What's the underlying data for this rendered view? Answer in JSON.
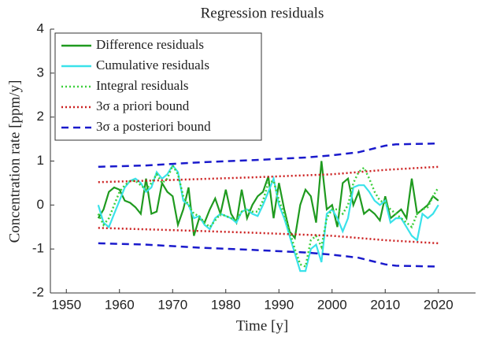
{
  "chart_data": {
    "type": "line",
    "title": "Regression residuals",
    "xlabel": "Time [y]",
    "ylabel": "Concentration rate [ppm/y]",
    "x": [
      1956,
      1957,
      1958,
      1959,
      1960,
      1961,
      1962,
      1963,
      1964,
      1965,
      1966,
      1967,
      1968,
      1969,
      1970,
      1971,
      1972,
      1973,
      1974,
      1975,
      1976,
      1977,
      1978,
      1979,
      1980,
      1981,
      1982,
      1983,
      1984,
      1985,
      1986,
      1987,
      1988,
      1989,
      1990,
      1991,
      1992,
      1993,
      1994,
      1995,
      1996,
      1997,
      1998,
      1999,
      2000,
      2001,
      2002,
      2003,
      2004,
      2005,
      2006,
      2007,
      2008,
      2009,
      2010,
      2011,
      2012,
      2013,
      2014,
      2015,
      2016,
      2017,
      2018,
      2019,
      2020
    ],
    "series": [
      {
        "name": "Difference residuals",
        "color": "#1f9a1f",
        "linestyle": "solid",
        "values": [
          -0.3,
          -0.1,
          0.3,
          0.4,
          0.35,
          0.1,
          0.05,
          -0.05,
          -0.2,
          0.6,
          -0.2,
          -0.15,
          0.5,
          0.3,
          0.2,
          -0.45,
          -0.1,
          0.4,
          -0.7,
          -0.3,
          -0.4,
          -0.1,
          0.15,
          -0.2,
          0.35,
          -0.2,
          -0.4,
          0.35,
          -0.3,
          0.0,
          0.2,
          0.3,
          0.65,
          -0.3,
          0.5,
          -0.1,
          -0.6,
          -0.75,
          0.0,
          0.35,
          0.2,
          -0.4,
          1.0,
          -0.1,
          0.0,
          -0.5,
          0.5,
          0.6,
          0.0,
          0.3,
          -0.2,
          -0.1,
          -0.2,
          -0.35,
          0.2,
          -0.3,
          -0.2,
          -0.1,
          -0.3,
          0.6,
          -0.2,
          -0.1,
          0.0,
          0.2,
          0.1
        ]
      },
      {
        "name": "Cumulative residuals",
        "color": "#3ae2ea",
        "linestyle": "solid",
        "values": [
          0.0,
          -0.4,
          -0.5,
          -0.2,
          0.1,
          0.4,
          0.55,
          0.6,
          0.5,
          0.3,
          0.4,
          0.75,
          0.6,
          0.7,
          0.9,
          0.75,
          0.1,
          0.0,
          -0.3,
          -0.25,
          -0.45,
          -0.55,
          -0.3,
          -0.2,
          -0.25,
          -0.3,
          -0.4,
          -0.15,
          -0.1,
          -0.2,
          -0.25,
          0.0,
          0.3,
          0.6,
          0.0,
          -0.3,
          -0.7,
          -1.1,
          -1.5,
          -1.5,
          -1.0,
          -0.9,
          -1.3,
          -0.2,
          -0.1,
          -0.3,
          -0.6,
          -0.3,
          0.4,
          0.45,
          0.45,
          0.3,
          0.1,
          0.0,
          0.1,
          -0.4,
          -0.3,
          -0.3,
          -0.5,
          -0.7,
          -0.8,
          -0.2,
          -0.3,
          -0.2,
          0.0
        ]
      },
      {
        "name": "Integral residuals",
        "color": "#3ccf3c",
        "linestyle": "dotted",
        "values": [
          -0.2,
          -0.45,
          -0.3,
          0.0,
          0.3,
          0.45,
          0.55,
          0.55,
          0.45,
          0.35,
          0.5,
          0.7,
          0.5,
          0.6,
          0.9,
          0.7,
          0.2,
          0.0,
          -0.2,
          -0.25,
          -0.4,
          -0.5,
          -0.35,
          -0.2,
          -0.25,
          -0.3,
          -0.35,
          -0.15,
          -0.1,
          -0.15,
          -0.15,
          0.1,
          0.5,
          0.55,
          0.1,
          -0.2,
          -0.6,
          -1.0,
          -1.35,
          -1.4,
          -0.8,
          -0.7,
          -0.95,
          -0.3,
          -0.1,
          -0.1,
          -0.2,
          0.0,
          0.5,
          0.75,
          0.85,
          0.6,
          0.3,
          0.1,
          0.05,
          -0.1,
          -0.2,
          -0.3,
          -0.4,
          -0.5,
          -0.2,
          -0.1,
          -0.05,
          0.2,
          0.4
        ]
      },
      {
        "name": "3σ a priori bound",
        "color": "#cc2020",
        "linestyle": "dotted",
        "x": [
          1956,
          1970,
          1985,
          2000,
          2010,
          2020
        ],
        "values": [
          0.52,
          0.57,
          0.63,
          0.7,
          0.8,
          0.87
        ],
        "lower": [
          -0.52,
          -0.57,
          -0.63,
          -0.7,
          -0.8,
          -0.87
        ]
      },
      {
        "name": "3σ a posteriori bound",
        "color": "#1a1acc",
        "linestyle": "dashed",
        "x": [
          1956,
          1965,
          1975,
          1985,
          1995,
          2000,
          2005,
          2010,
          2012,
          2020
        ],
        "values": [
          0.87,
          0.9,
          0.97,
          1.02,
          1.08,
          1.13,
          1.2,
          1.35,
          1.38,
          1.4
        ],
        "lower": [
          -0.87,
          -0.9,
          -0.97,
          -1.02,
          -1.08,
          -1.13,
          -1.2,
          -1.35,
          -1.38,
          -1.4
        ]
      }
    ],
    "xlim": [
      1947,
      2027
    ],
    "ylim": [
      -2,
      4
    ],
    "xticks": [
      1950,
      1960,
      1970,
      1980,
      1990,
      2000,
      2010,
      2020
    ],
    "yticks": [
      -2,
      -1,
      0,
      1,
      2,
      3,
      4
    ],
    "grid": false,
    "legend": "upper left"
  }
}
